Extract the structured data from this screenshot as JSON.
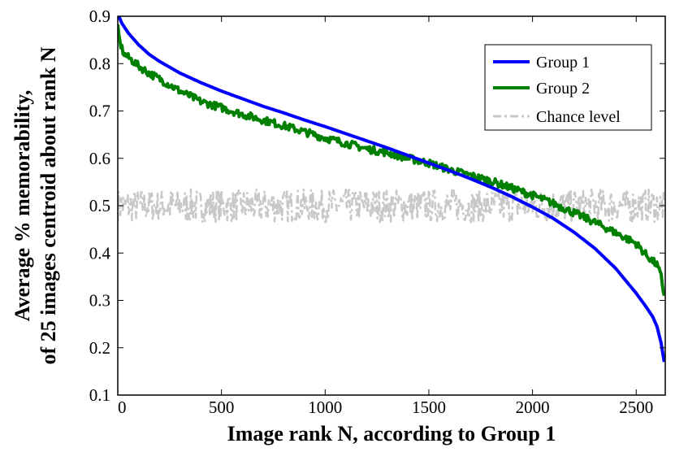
{
  "chart_data": {
    "type": "line",
    "title": "",
    "xlabel": "Image rank N, according to Group 1",
    "ylabel": [
      "Average % memorability,",
      "of 25 images centroid about rank N"
    ],
    "xlim": [
      0,
      2640
    ],
    "ylim": [
      0.1,
      0.9
    ],
    "x_ticks": [
      0,
      500,
      1000,
      1500,
      2000,
      2500
    ],
    "y_ticks": [
      0.1,
      0.2,
      0.3,
      0.4,
      0.5,
      0.6,
      0.7,
      0.8,
      0.9
    ],
    "x_tick_labels": [
      "0",
      "500",
      "1000",
      "1500",
      "2000",
      "2500"
    ],
    "y_tick_labels": [
      "0.1",
      "0.2",
      "0.3",
      "0.4",
      "0.5",
      "0.6",
      "0.7",
      "0.8",
      "0.9"
    ],
    "grid": false,
    "legend_position": "top-right",
    "series": [
      {
        "name": "Group 1",
        "color": "#0000ff",
        "style": "solid",
        "x": [
          0,
          20,
          50,
          100,
          150,
          200,
          300,
          400,
          500,
          600,
          700,
          800,
          900,
          1000,
          1100,
          1200,
          1300,
          1400,
          1500,
          1600,
          1700,
          1800,
          1900,
          2000,
          2100,
          2200,
          2300,
          2400,
          2500,
          2550,
          2580,
          2600,
          2620,
          2635
        ],
        "y": [
          0.905,
          0.885,
          0.865,
          0.84,
          0.82,
          0.805,
          0.78,
          0.76,
          0.742,
          0.726,
          0.71,
          0.696,
          0.681,
          0.667,
          0.652,
          0.637,
          0.622,
          0.606,
          0.59,
          0.574,
          0.557,
          0.539,
          0.519,
          0.497,
          0.473,
          0.444,
          0.41,
          0.368,
          0.315,
          0.285,
          0.265,
          0.245,
          0.21,
          0.17
        ]
      },
      {
        "name": "Group 2",
        "color": "#008000",
        "style": "solid",
        "x": [
          0,
          10,
          30,
          60,
          100,
          150,
          200,
          250,
          300,
          400,
          500,
          600,
          700,
          800,
          900,
          1000,
          1100,
          1200,
          1300,
          1400,
          1500,
          1600,
          1700,
          1800,
          1900,
          2000,
          2100,
          2200,
          2300,
          2400,
          2500,
          2550,
          2600,
          2620,
          2635
        ],
        "y": [
          0.875,
          0.845,
          0.82,
          0.81,
          0.795,
          0.78,
          0.768,
          0.755,
          0.742,
          0.72,
          0.707,
          0.693,
          0.681,
          0.669,
          0.656,
          0.643,
          0.632,
          0.62,
          0.612,
          0.6,
          0.59,
          0.576,
          0.564,
          0.552,
          0.537,
          0.522,
          0.505,
          0.485,
          0.465,
          0.443,
          0.42,
          0.395,
          0.375,
          0.35,
          0.31
        ]
      },
      {
        "name": "Chance level",
        "color": "#c8c8c8",
        "style": "dash-dot",
        "x": [
          0,
          2635
        ],
        "y": [
          0.5,
          0.5
        ]
      }
    ]
  }
}
